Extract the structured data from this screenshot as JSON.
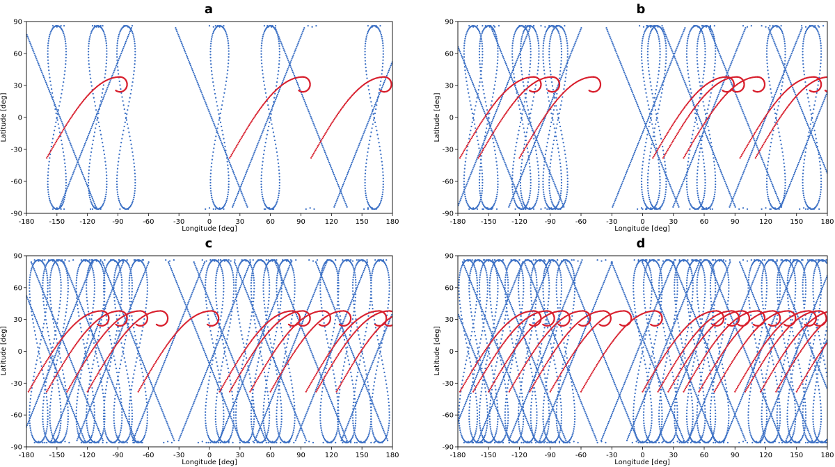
{
  "figure": {
    "point_size": 1.15,
    "colors": {
      "ground_track": "#3a6fc4",
      "red_track": "#d8202e"
    }
  },
  "chart_data": [
    {
      "type": "scatter",
      "panel": "a",
      "title": "a",
      "xlabel": "Longitude [deg]",
      "ylabel": "Latitude [deg]",
      "xlim": [
        -180,
        180
      ],
      "ylim": [
        -90,
        90
      ],
      "xticks": [
        -180,
        -150,
        -120,
        -90,
        -60,
        -30,
        0,
        30,
        60,
        90,
        120,
        150,
        180
      ],
      "yticks": [
        -90,
        -60,
        -30,
        0,
        30,
        60,
        90
      ],
      "series": [
        {
          "name": "blue ground tracks",
          "color": "#3a6fc4",
          "loops": [
            -150,
            -110,
            -82,
            10,
            60,
            162
          ],
          "crossings": [
            -147,
            -112,
            2,
            58,
            100,
            158
          ]
        },
        {
          "name": "red tracks",
          "color": "#d8202e",
          "starts": [
            -160,
            20,
            100
          ]
        }
      ]
    },
    {
      "type": "scatter",
      "panel": "b",
      "title": "b",
      "xlabel": "Longitude [deg]",
      "ylabel": "Latitude [deg]",
      "xlim": [
        -180,
        180
      ],
      "ylim": [
        -90,
        90
      ],
      "xticks": [
        -180,
        -150,
        -120,
        -90,
        -60,
        -30,
        0,
        30,
        60,
        90,
        120,
        150,
        180
      ],
      "yticks": [
        -90,
        -60,
        -30,
        0,
        30,
        60,
        90
      ],
      "series": [
        {
          "name": "blue ground tracks",
          "color": "#3a6fc4",
          "loops": [
            -165,
            -150,
            -118,
            -110,
            -88,
            -82,
            8,
            14,
            52,
            62,
            130,
            165
          ],
          "crossings": [
            -152,
            -145,
            -112,
            -95,
            0,
            6,
            55,
            65,
            100,
            120,
            158,
            170
          ]
        },
        {
          "name": "red tracks",
          "color": "#d8202e",
          "starts": [
            -178,
            -160,
            -120,
            10,
            20,
            40,
            95,
            110
          ]
        }
      ]
    },
    {
      "type": "scatter",
      "panel": "c",
      "title": "c",
      "xlabel": "Longitude [deg]",
      "ylabel": "Latitude [deg]",
      "xlim": [
        -180,
        180
      ],
      "ylim": [
        -90,
        90
      ],
      "xticks": [
        -180,
        -150,
        -120,
        -90,
        -60,
        -30,
        0,
        30,
        60,
        90,
        120,
        150,
        180
      ],
      "yticks": [
        -90,
        -60,
        -30,
        0,
        30,
        60,
        90
      ],
      "series": [
        {
          "name": "blue ground tracks",
          "color": "#3a6fc4",
          "loops": [
            -168,
            -155,
            -148,
            -122,
            -112,
            -95,
            -85,
            -70,
            5,
            15,
            35,
            50,
            62,
            75,
            118,
            135,
            150,
            168
          ],
          "crossings": [
            -158,
            -150,
            -140,
            -120,
            -108,
            -95,
            -70,
            -40,
            -5,
            5,
            20,
            45,
            60,
            80,
            100,
            120,
            140,
            165
          ]
        },
        {
          "name": "red tracks",
          "color": "#d8202e",
          "starts": [
            -178,
            -160,
            -140,
            -120,
            -70,
            10,
            20,
            40,
            60,
            95,
            105,
            125
          ]
        }
      ]
    },
    {
      "type": "scatter",
      "panel": "d",
      "title": "d",
      "xlabel": "Longitude [deg]",
      "ylabel": "Latitude [deg]",
      "xlim": [
        -180,
        180
      ],
      "ylim": [
        -90,
        90
      ],
      "xticks": [
        -180,
        -150,
        -120,
        -90,
        -60,
        -30,
        0,
        30,
        60,
        90,
        120,
        150,
        180
      ],
      "yticks": [
        -90,
        -60,
        -30,
        0,
        30,
        60,
        90
      ],
      "series": [
        {
          "name": "blue ground tracks",
          "color": "#3a6fc4",
          "loops": [
            -170,
            -160,
            -150,
            -140,
            -125,
            -112,
            -100,
            -88,
            -75,
            0,
            10,
            25,
            40,
            52,
            62,
            75,
            112,
            125,
            140,
            150,
            165,
            175
          ],
          "crossings": [
            -165,
            -152,
            -140,
            -125,
            -110,
            -95,
            -80,
            -65,
            -40,
            -5,
            5,
            20,
            35,
            50,
            65,
            80,
            100,
            115,
            130,
            150,
            165,
            175
          ]
        },
        {
          "name": "red tracks",
          "color": "#d8202e",
          "starts": [
            -178,
            -165,
            -150,
            -130,
            -110,
            -90,
            -60,
            0,
            15,
            25,
            40,
            55,
            70,
            90,
            100,
            115,
            130,
            150
          ]
        }
      ]
    }
  ]
}
